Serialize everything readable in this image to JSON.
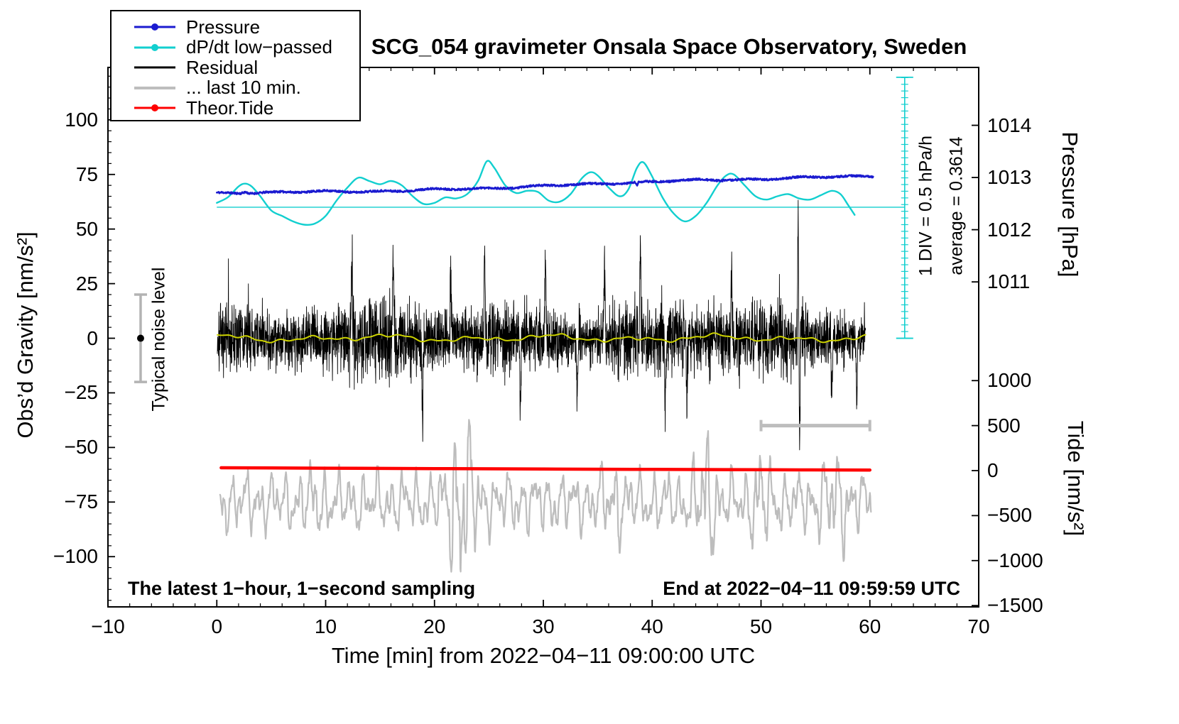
{
  "notes": {
    "div_scale": "1 DIV = 0.5 hPa/h",
    "average": "average = 0.3614",
    "noise_level": "Typical noise level",
    "sampling": "The latest 1−hour, 1−second sampling",
    "end": "End at 2022−04−11 09:59:59 UTC"
  },
  "legend": {
    "items": [
      {
        "label": "Pressure",
        "color": "#1b1bd0",
        "thickness": 3,
        "dot": true
      },
      {
        "label": "dP/dt low−passed",
        "color": "#12cfcf",
        "thickness": 3,
        "dot": true
      },
      {
        "label": "Residual",
        "color": "#000000",
        "thickness": 3,
        "dot": false
      },
      {
        "label": "... last 10 min.",
        "color": "#bdbdbd",
        "thickness": 4,
        "dot": false
      },
      {
        "label": "Theor.Tide",
        "color": "#ff0000",
        "thickness": 3,
        "dot": true
      }
    ]
  },
  "chart_data": {
    "type": "line",
    "title": "SCG_054 gravimeter Onsala Space Observatory, Sweden",
    "xlabel": "Time [min] from 2022−04−11 09:00:00 UTC",
    "ylabel_left": "Obs’d Gravity [nm/s²]",
    "ylabel_pressure": "Pressure [hPa]",
    "ylabel_tide": "Tide [nm/s²]",
    "xlim": [
      -10,
      70
    ],
    "ylim_left": [
      -123,
      124
    ],
    "xticks": [
      -10,
      0,
      10,
      20,
      30,
      40,
      50,
      60,
      70
    ],
    "yticks_left": [
      -100,
      -75,
      -50,
      -25,
      0,
      25,
      50,
      75,
      100
    ],
    "pressure_axis": {
      "ticks": [
        1014,
        1013,
        1012,
        1011
      ],
      "ref_hpa": 1011,
      "gravity_at_ref": 25.8,
      "gravity_per_hpa": 23.9
    },
    "tide_axis": {
      "ticks": [
        1000,
        500,
        0,
        -500,
        -1000,
        -1500
      ],
      "gravity_at_zero": -60.6,
      "gravity_per_unit": 0.0412
    },
    "grid": false,
    "legend_position": "top-left",
    "div_ruler": {
      "x": 63.2,
      "y0": 0,
      "y1": 119.5,
      "tick_step": 3.06,
      "color": "#12cfcf"
    },
    "noise_errorbar": {
      "x": -7,
      "center": 0,
      "half_range": 20,
      "color": "#b3b3b3",
      "dot_color": "#000000"
    },
    "scale_bar": {
      "x0": 50,
      "x1": 60,
      "y": -40,
      "color": "#bdbdbd"
    },
    "series": [
      {
        "name": "dpdt-zero-line",
        "color": "#12cfcf",
        "width": 1.3,
        "type": "segment",
        "from": [
          0,
          60
        ],
        "to": [
          63.2,
          60
        ]
      },
      {
        "name": "dpdt-lowpassed",
        "color": "#12cfcf",
        "width": 2.4,
        "type": "smooth-anchors",
        "anchors": [
          [
            0,
            62
          ],
          [
            1,
            64.5
          ],
          [
            2,
            69.5
          ],
          [
            2.6,
            70.8
          ],
          [
            3.2,
            69.5
          ],
          [
            4,
            65
          ],
          [
            5,
            58.5
          ],
          [
            6,
            56
          ],
          [
            7,
            53.5
          ],
          [
            8,
            52
          ],
          [
            9,
            52.5
          ],
          [
            10,
            56
          ],
          [
            11,
            63
          ],
          [
            12,
            69
          ],
          [
            13,
            73.5
          ],
          [
            14,
            72
          ],
          [
            15,
            70.5
          ],
          [
            16,
            72
          ],
          [
            17,
            70
          ],
          [
            18,
            65
          ],
          [
            19,
            61.5
          ],
          [
            20,
            62
          ],
          [
            21,
            64.5
          ],
          [
            22,
            64
          ],
          [
            23,
            66
          ],
          [
            24,
            72
          ],
          [
            24.8,
            81
          ],
          [
            25.5,
            78
          ],
          [
            26.5,
            70
          ],
          [
            27.5,
            66.5
          ],
          [
            28.5,
            67.5
          ],
          [
            29.5,
            67
          ],
          [
            30.5,
            63
          ],
          [
            31.5,
            62.5
          ],
          [
            32.5,
            66
          ],
          [
            33.5,
            73
          ],
          [
            34.3,
            76
          ],
          [
            35,
            74.5
          ],
          [
            36,
            69
          ],
          [
            37,
            65
          ],
          [
            37.8,
            68
          ],
          [
            38.6,
            78
          ],
          [
            39.2,
            80.5
          ],
          [
            40,
            74
          ],
          [
            41,
            64
          ],
          [
            42,
            57
          ],
          [
            43,
            53.5
          ],
          [
            44,
            56
          ],
          [
            45,
            62
          ],
          [
            46,
            70
          ],
          [
            46.8,
            74.5
          ],
          [
            47.5,
            75
          ],
          [
            48.5,
            70
          ],
          [
            49.5,
            65
          ],
          [
            50.5,
            63.5
          ],
          [
            51.5,
            65
          ],
          [
            52.5,
            66
          ],
          [
            53.5,
            64
          ],
          [
            54.5,
            63.5
          ],
          [
            55.5,
            65.5
          ],
          [
            56.5,
            67.5
          ],
          [
            57.3,
            66
          ],
          [
            58,
            61
          ],
          [
            58.6,
            56.5
          ]
        ]
      },
      {
        "name": "pressure",
        "color": "#1b1bd0",
        "width": 2.6,
        "type": "noisy-anchors",
        "seed": 11,
        "n": 1500,
        "jitter": 0.42,
        "anchors": [
          [
            0,
            66.4
          ],
          [
            2,
            66.6
          ],
          [
            4,
            66.8
          ],
          [
            6,
            66.9
          ],
          [
            8,
            67.0
          ],
          [
            10,
            67.1
          ],
          [
            12,
            67.2
          ],
          [
            14,
            67.3
          ],
          [
            16,
            67.5
          ],
          [
            18,
            67.7
          ],
          [
            20,
            68.0
          ],
          [
            22,
            68.3
          ],
          [
            24,
            68.6
          ],
          [
            26,
            68.9
          ],
          [
            28,
            69.3
          ],
          [
            30,
            69.7
          ],
          [
            32,
            70.1
          ],
          [
            34,
            70.5
          ],
          [
            36,
            70.9
          ],
          [
            38,
            71.3
          ],
          [
            40,
            71.7
          ],
          [
            42,
            72.0
          ],
          [
            44,
            72.3
          ],
          [
            46,
            72.5
          ],
          [
            48,
            72.7
          ],
          [
            50,
            72.9
          ],
          [
            52,
            73.2
          ],
          [
            54,
            73.5
          ],
          [
            56,
            73.8
          ],
          [
            58,
            74.1
          ],
          [
            60.3,
            74.4
          ]
        ],
        "wiggle": [
          [
            0.3,
            1.3,
            1.0
          ],
          [
            0.2,
            0.55,
            3.0
          ]
        ],
        "events": [
          [
            2.6,
            0.7,
            5
          ],
          [
            38.6,
            -1.5,
            14
          ]
        ]
      },
      {
        "name": "last-10-min",
        "color": "#bdbdbd",
        "width": 2.2,
        "type": "sines",
        "base": -75,
        "x0": 0.3,
        "x1": 60.1,
        "n": 1800,
        "components": [
          [
            7,
            5.2,
            0.3
          ],
          [
            5,
            8.9,
            1.7
          ],
          [
            3.5,
            14.3,
            4.1
          ],
          [
            2.5,
            2.1,
            2.6
          ],
          [
            1.5,
            33,
            0.9
          ],
          [
            1.0,
            52,
            3.3
          ]
        ],
        "bursts": [
          [
            22.5,
            1.2,
            2.4
          ],
          [
            44.9,
            0.9,
            1.6
          ],
          [
            49.9,
            0.9,
            1.0
          ],
          [
            56.8,
            1.3,
            0.9
          ],
          [
            36.5,
            1.2,
            0.5
          ],
          [
            9.0,
            1.0,
            0.35
          ]
        ]
      },
      {
        "name": "theor-tide",
        "color": "#ff0000",
        "width": 4.5,
        "type": "smooth-anchors",
        "anchors": [
          [
            0.4,
            -59.3
          ],
          [
            10,
            -59.5
          ],
          [
            20,
            -59.7
          ],
          [
            30,
            -59.9
          ],
          [
            40,
            -60.05
          ],
          [
            50,
            -60.2
          ],
          [
            60,
            -60.35
          ]
        ]
      },
      {
        "name": "residual",
        "color": "#000000",
        "width": 0.9,
        "type": "noise",
        "seed": 7,
        "x0": 0.05,
        "x1": 59.6,
        "n": 3570,
        "sigma": 7.6,
        "events": [
          [
            12.4,
            36,
            20
          ],
          [
            16.2,
            33,
            20
          ],
          [
            18.9,
            -36,
            20
          ],
          [
            21.5,
            30,
            20
          ],
          [
            24.6,
            37,
            20
          ],
          [
            27.9,
            -30,
            20
          ],
          [
            30.2,
            36,
            20
          ],
          [
            33.1,
            -32,
            20
          ],
          [
            35.6,
            34,
            20
          ],
          [
            38.9,
            36,
            20
          ],
          [
            41.2,
            -30,
            20
          ],
          [
            43.2,
            -33,
            20
          ],
          [
            47.3,
            31,
            20
          ],
          [
            53.4,
            50,
            28
          ],
          [
            53.55,
            -47,
            28
          ],
          [
            56.5,
            -33,
            20
          ],
          [
            58.8,
            -28,
            20
          ]
        ]
      },
      {
        "name": "residual-lowpassed",
        "color": "#cdd300",
        "width": 2,
        "type": "sines",
        "base": 0,
        "x0": 0.05,
        "x1": 59.6,
        "n": 600,
        "components": [
          [
            0.9,
            0.85,
            0.5
          ],
          [
            0.7,
            0.4,
            2.0
          ],
          [
            0.5,
            2.2,
            1.2
          ],
          [
            0.35,
            4.1,
            3.0
          ]
        ]
      }
    ]
  }
}
